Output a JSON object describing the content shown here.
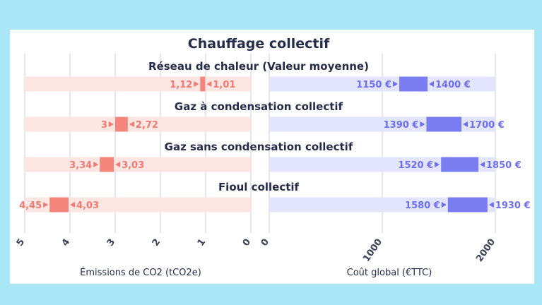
{
  "chart_data": {
    "type": "bar",
    "title": "Chauffage collectif",
    "categories": [
      "Réseau de chaleur (Valeur moyenne)",
      "Gaz à condensation collectif",
      "Gaz sans condensation collectif",
      "Fioul collectif"
    ],
    "panels": [
      {
        "name": "emissions",
        "xlabel": "Émissions de CO2 (tCO2e)",
        "xlim": [
          0,
          5
        ],
        "reversed": true,
        "ticks": [
          "5",
          "4",
          "3",
          "2",
          "1",
          "0"
        ],
        "ranges": [
          {
            "low": 1.01,
            "high": 1.12,
            "low_label": "1,01",
            "high_label": "1,12"
          },
          {
            "low": 2.72,
            "high": 3,
            "low_label": "2,72",
            "high_label": "3"
          },
          {
            "low": 3.03,
            "high": 3.34,
            "low_label": "3,03",
            "high_label": "3,34"
          },
          {
            "low": 4.03,
            "high": 4.45,
            "low_label": "4,03",
            "high_label": "4,45"
          }
        ],
        "colors": {
          "bar": "#f4857b",
          "track": "#fde5e2",
          "label": "#ee7b73"
        }
      },
      {
        "name": "cost",
        "xlabel": "Coût global (€TTC)",
        "xlim": [
          0,
          2000
        ],
        "reversed": false,
        "ticks": [
          "0",
          "1000",
          "2000"
        ],
        "ranges": [
          {
            "low": 1150,
            "high": 1400,
            "low_label": "1150 €",
            "high_label": "1400 €"
          },
          {
            "low": 1390,
            "high": 1700,
            "low_label": "1390 €",
            "high_label": "1700 €"
          },
          {
            "low": 1520,
            "high": 1850,
            "low_label": "1520 €",
            "high_label": "1850 €"
          },
          {
            "low": 1580,
            "high": 1930,
            "low_label": "1580 €",
            "high_label": "1930 €"
          }
        ],
        "colors": {
          "bar": "#7a7cf2",
          "track": "#e3e4fd",
          "label": "#6c6ff0"
        }
      }
    ]
  },
  "colors": {
    "background": "#a9e6f6",
    "panel": "#ffffff",
    "grid": "#c9ccd6",
    "text": "#242c4a"
  }
}
